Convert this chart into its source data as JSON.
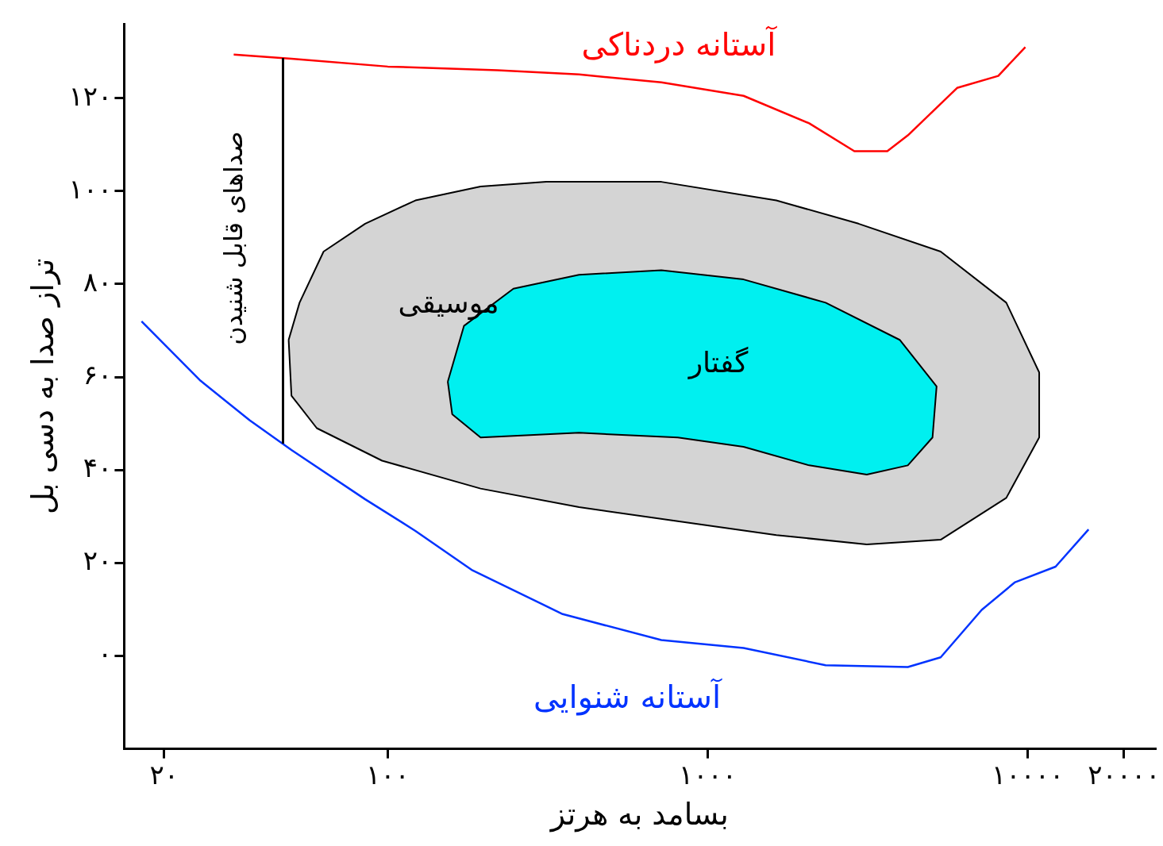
{
  "chart_data": {
    "type": "line",
    "xlabel": "بسامد به هرتز",
    "ylabel": "تراز صدا به دسی بل",
    "log": "x",
    "grid": false,
    "legend": false,
    "marker": "none",
    "xlim": [
      15,
      25000
    ],
    "xticks": [
      {
        "value": 20,
        "label": "۲۰"
      },
      {
        "value": 100,
        "label": "۱۰۰"
      },
      {
        "value": 1000,
        "label": "۱۰۰۰"
      },
      {
        "value": 10000,
        "label": "۱۰۰۰۰"
      },
      {
        "value": 20000,
        "label": "۲۰۰۰۰"
      }
    ],
    "ylim": [
      -20,
      136
    ],
    "yticks": [
      {
        "value": 0,
        "label": "۰"
      },
      {
        "value": 20,
        "label": "۲۰"
      },
      {
        "value": 40,
        "label": "۴۰"
      },
      {
        "value": 60,
        "label": "۶۰"
      },
      {
        "value": 80,
        "label": "۸۰"
      },
      {
        "value": 100,
        "label": "۱۰۰"
      },
      {
        "value": 120,
        "label": "۱۲۰"
      }
    ],
    "series": [
      {
        "name": "موسیقی",
        "type": "area",
        "color": "#d4d4d4",
        "x": [
          49,
          53,
          63,
          85,
          122,
          195,
          313,
          716,
          1638,
          2958,
          5345,
          8570,
          10860,
          10860,
          8570,
          5345,
          3140,
          1638,
          806,
          396,
          195,
          96,
          60,
          50,
          49
        ],
        "values": [
          68,
          76,
          87,
          93,
          98,
          101,
          102,
          102,
          98,
          93,
          87,
          76,
          61,
          47,
          34,
          25,
          24,
          26,
          29,
          32,
          36,
          42,
          49,
          56,
          68
        ]
      },
      {
        "name": "گفتار",
        "type": "area",
        "color": "#00f0f0",
        "x": [
          154,
          173,
          247,
          396,
          716,
          1294,
          2335,
          3980,
          5190,
          5040,
          4220,
          3140,
          2075,
          1294,
          806,
          396,
          195,
          159,
          154
        ],
        "values": [
          59,
          71,
          79,
          82,
          83,
          81,
          76,
          68,
          58,
          47,
          41,
          39,
          41,
          45,
          47,
          48,
          47,
          52,
          59
        ]
      },
      {
        "name": "آستانه دردناکی",
        "color": "#ff0000",
        "x": [
          33,
          50,
          100,
          220,
          396,
          716,
          1294,
          2075,
          2872,
          3640,
          4220,
          6015,
          8090,
          9830
        ],
        "values": [
          129.4,
          128.5,
          126.8,
          126,
          125.1,
          123.4,
          120.5,
          114.6,
          108.6,
          108.6,
          112,
          122.2,
          124.8,
          131
        ]
      },
      {
        "name": "آستانه شنوایی",
        "color": "#0033ff",
        "x": [
          17,
          26,
          37,
          50,
          85,
          122,
          184,
          352,
          716,
          1294,
          2335,
          4220,
          5345,
          7180,
          9100,
          12220,
          15490
        ],
        "values": [
          72,
          59.2,
          50.7,
          44.3,
          33.7,
          26.9,
          18.4,
          9,
          3.4,
          1.7,
          -2,
          -2.4,
          -0.3,
          9.9,
          15.8,
          19.2,
          27.2
        ]
      }
    ],
    "annotations": [
      "صداهای قابل شنیدن"
    ]
  }
}
